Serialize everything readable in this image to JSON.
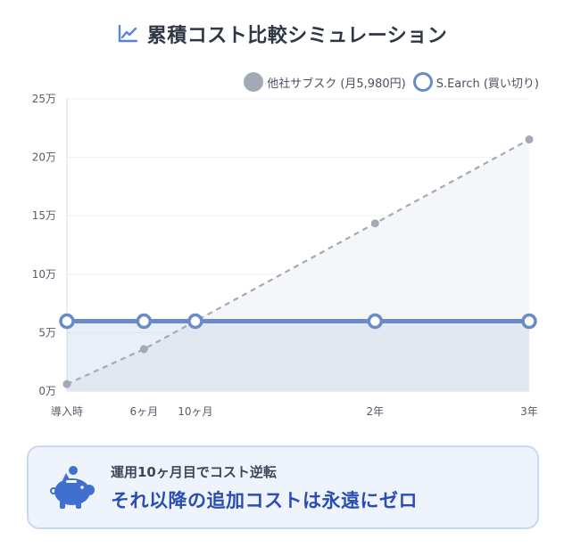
{
  "header": {
    "title": "累積コスト比較シミュレーション",
    "icon": "line-chart-icon"
  },
  "chart_data": {
    "type": "line",
    "title": "",
    "xlabel": "",
    "ylabel": "",
    "categories": [
      "導入時",
      "6ヶ月",
      "10ヶ月",
      "2年",
      "3年"
    ],
    "x": [
      0,
      6,
      10,
      24,
      36
    ],
    "y_ticks": [
      "0万",
      "5万",
      "10万",
      "15万",
      "20万",
      "25万"
    ],
    "ylim": [
      0,
      250000
    ],
    "grid": true,
    "legend": "top-right",
    "series": [
      {
        "name": "他社サブスク (月5,980円)",
        "values": [
          5980,
          35880,
          59800,
          143520,
          215280
        ],
        "color": "#a3a9b6",
        "style": "dashed"
      },
      {
        "name": "S.Earch (買い切り)",
        "values": [
          59800,
          59800,
          59800,
          59800,
          59800
        ],
        "color": "#6a8cc6",
        "style": "solid"
      }
    ]
  },
  "callout": {
    "icon": "piggy-bank-icon",
    "subtitle": "運用10ヶ月目でコスト逆転",
    "main_text": "それ以降の追加コストは永遠にゼロ"
  }
}
